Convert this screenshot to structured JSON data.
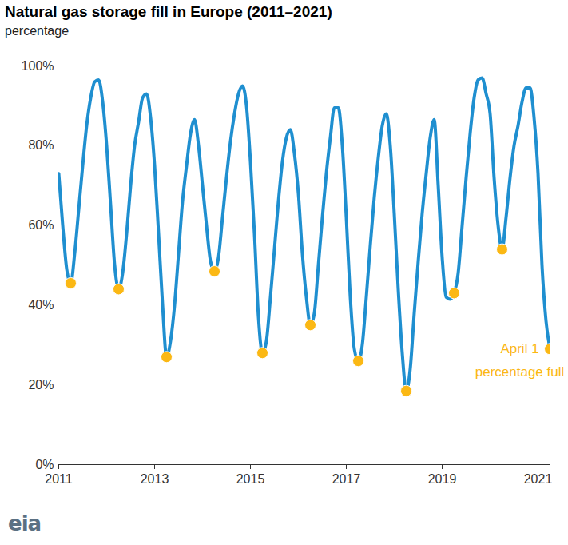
{
  "chart_data": {
    "type": "line",
    "title": "Natural gas storage fill in Europe (2011–2021)",
    "subtitle": "percentage",
    "logo": "eia",
    "color": "#1f8fd0",
    "x": [
      2011.0,
      2011.083,
      2011.167,
      2011.25,
      2011.333,
      2011.417,
      2011.5,
      2011.583,
      2011.667,
      2011.75,
      2011.833,
      2011.917,
      2012.0,
      2012.083,
      2012.167,
      2012.25,
      2012.333,
      2012.417,
      2012.5,
      2012.583,
      2012.667,
      2012.75,
      2012.833,
      2012.917,
      2013.0,
      2013.083,
      2013.167,
      2013.25,
      2013.333,
      2013.417,
      2013.5,
      2013.583,
      2013.667,
      2013.75,
      2013.833,
      2013.917,
      2014.0,
      2014.083,
      2014.167,
      2014.25,
      2014.333,
      2014.417,
      2014.5,
      2014.583,
      2014.667,
      2014.75,
      2014.833,
      2014.917,
      2015.0,
      2015.083,
      2015.167,
      2015.25,
      2015.333,
      2015.417,
      2015.5,
      2015.583,
      2015.667,
      2015.75,
      2015.833,
      2015.917,
      2016.0,
      2016.083,
      2016.167,
      2016.25,
      2016.333,
      2016.417,
      2016.5,
      2016.583,
      2016.667,
      2016.75,
      2016.833,
      2016.917,
      2017.0,
      2017.083,
      2017.167,
      2017.25,
      2017.333,
      2017.417,
      2017.5,
      2017.583,
      2017.667,
      2017.75,
      2017.833,
      2017.917,
      2018.0,
      2018.083,
      2018.167,
      2018.25,
      2018.333,
      2018.417,
      2018.5,
      2018.583,
      2018.667,
      2018.75,
      2018.833,
      2018.917,
      2019.0,
      2019.083,
      2019.167,
      2019.25,
      2019.333,
      2019.417,
      2019.5,
      2019.583,
      2019.667,
      2019.75,
      2019.833,
      2019.917,
      2020.0,
      2020.083,
      2020.167,
      2020.25,
      2020.333,
      2020.417,
      2020.5,
      2020.583,
      2020.667,
      2020.75,
      2020.833,
      2020.917,
      2021.0,
      2021.083,
      2021.167,
      2021.25
    ],
    "values": [
      73,
      60,
      49,
      45.5,
      53,
      64,
      75,
      85,
      92,
      96,
      96.5,
      91,
      80,
      65,
      50,
      44,
      48,
      58,
      70,
      80,
      86,
      92,
      93,
      87,
      75,
      58,
      40,
      27,
      31,
      40,
      53,
      66,
      75,
      83,
      86.5,
      80,
      70,
      60,
      51,
      48.5,
      52,
      62,
      72,
      81,
      88,
      93,
      95,
      90,
      76,
      58,
      37,
      28,
      31,
      42,
      54,
      66,
      76,
      82,
      84,
      78,
      68,
      53,
      42,
      35,
      38,
      50,
      62,
      73,
      82,
      89.5,
      89.5,
      80,
      62,
      42,
      29,
      26,
      30,
      42,
      55,
      67,
      77,
      85,
      88,
      80,
      63,
      44,
      28,
      18.5,
      24,
      38,
      51,
      63,
      73,
      82,
      86.5,
      70,
      52,
      42,
      41.5,
      43,
      48,
      60,
      72,
      83,
      92,
      96.5,
      97,
      93,
      88,
      72,
      60,
      54,
      62,
      72,
      80,
      85,
      91,
      94.5,
      94.5,
      87,
      73,
      50,
      36,
      29
    ],
    "points": {
      "x": [
        2011.25,
        2012.25,
        2013.25,
        2014.25,
        2015.25,
        2016.25,
        2017.25,
        2018.25,
        2019.25,
        2020.25,
        2021.25
      ],
      "values": [
        45.5,
        44,
        27,
        48.5,
        28,
        35,
        26,
        18.5,
        43,
        54,
        29
      ],
      "color": "#fbb814",
      "marker": "circle",
      "annotation": [
        "April 1",
        "percentage full"
      ]
    },
    "xlim": [
      2011,
      2021.25
    ],
    "xticks": [
      2011,
      2013,
      2015,
      2017,
      2019,
      2021
    ],
    "ylim": [
      0,
      100
    ],
    "yticks": [
      {
        "value": 0,
        "label": "0%"
      },
      {
        "value": 20,
        "label": "20%"
      },
      {
        "value": 40,
        "label": "40%"
      },
      {
        "value": 60,
        "label": "60%"
      },
      {
        "value": 80,
        "label": "80%"
      },
      {
        "value": 100,
        "label": "100%"
      }
    ],
    "grid": false
  }
}
